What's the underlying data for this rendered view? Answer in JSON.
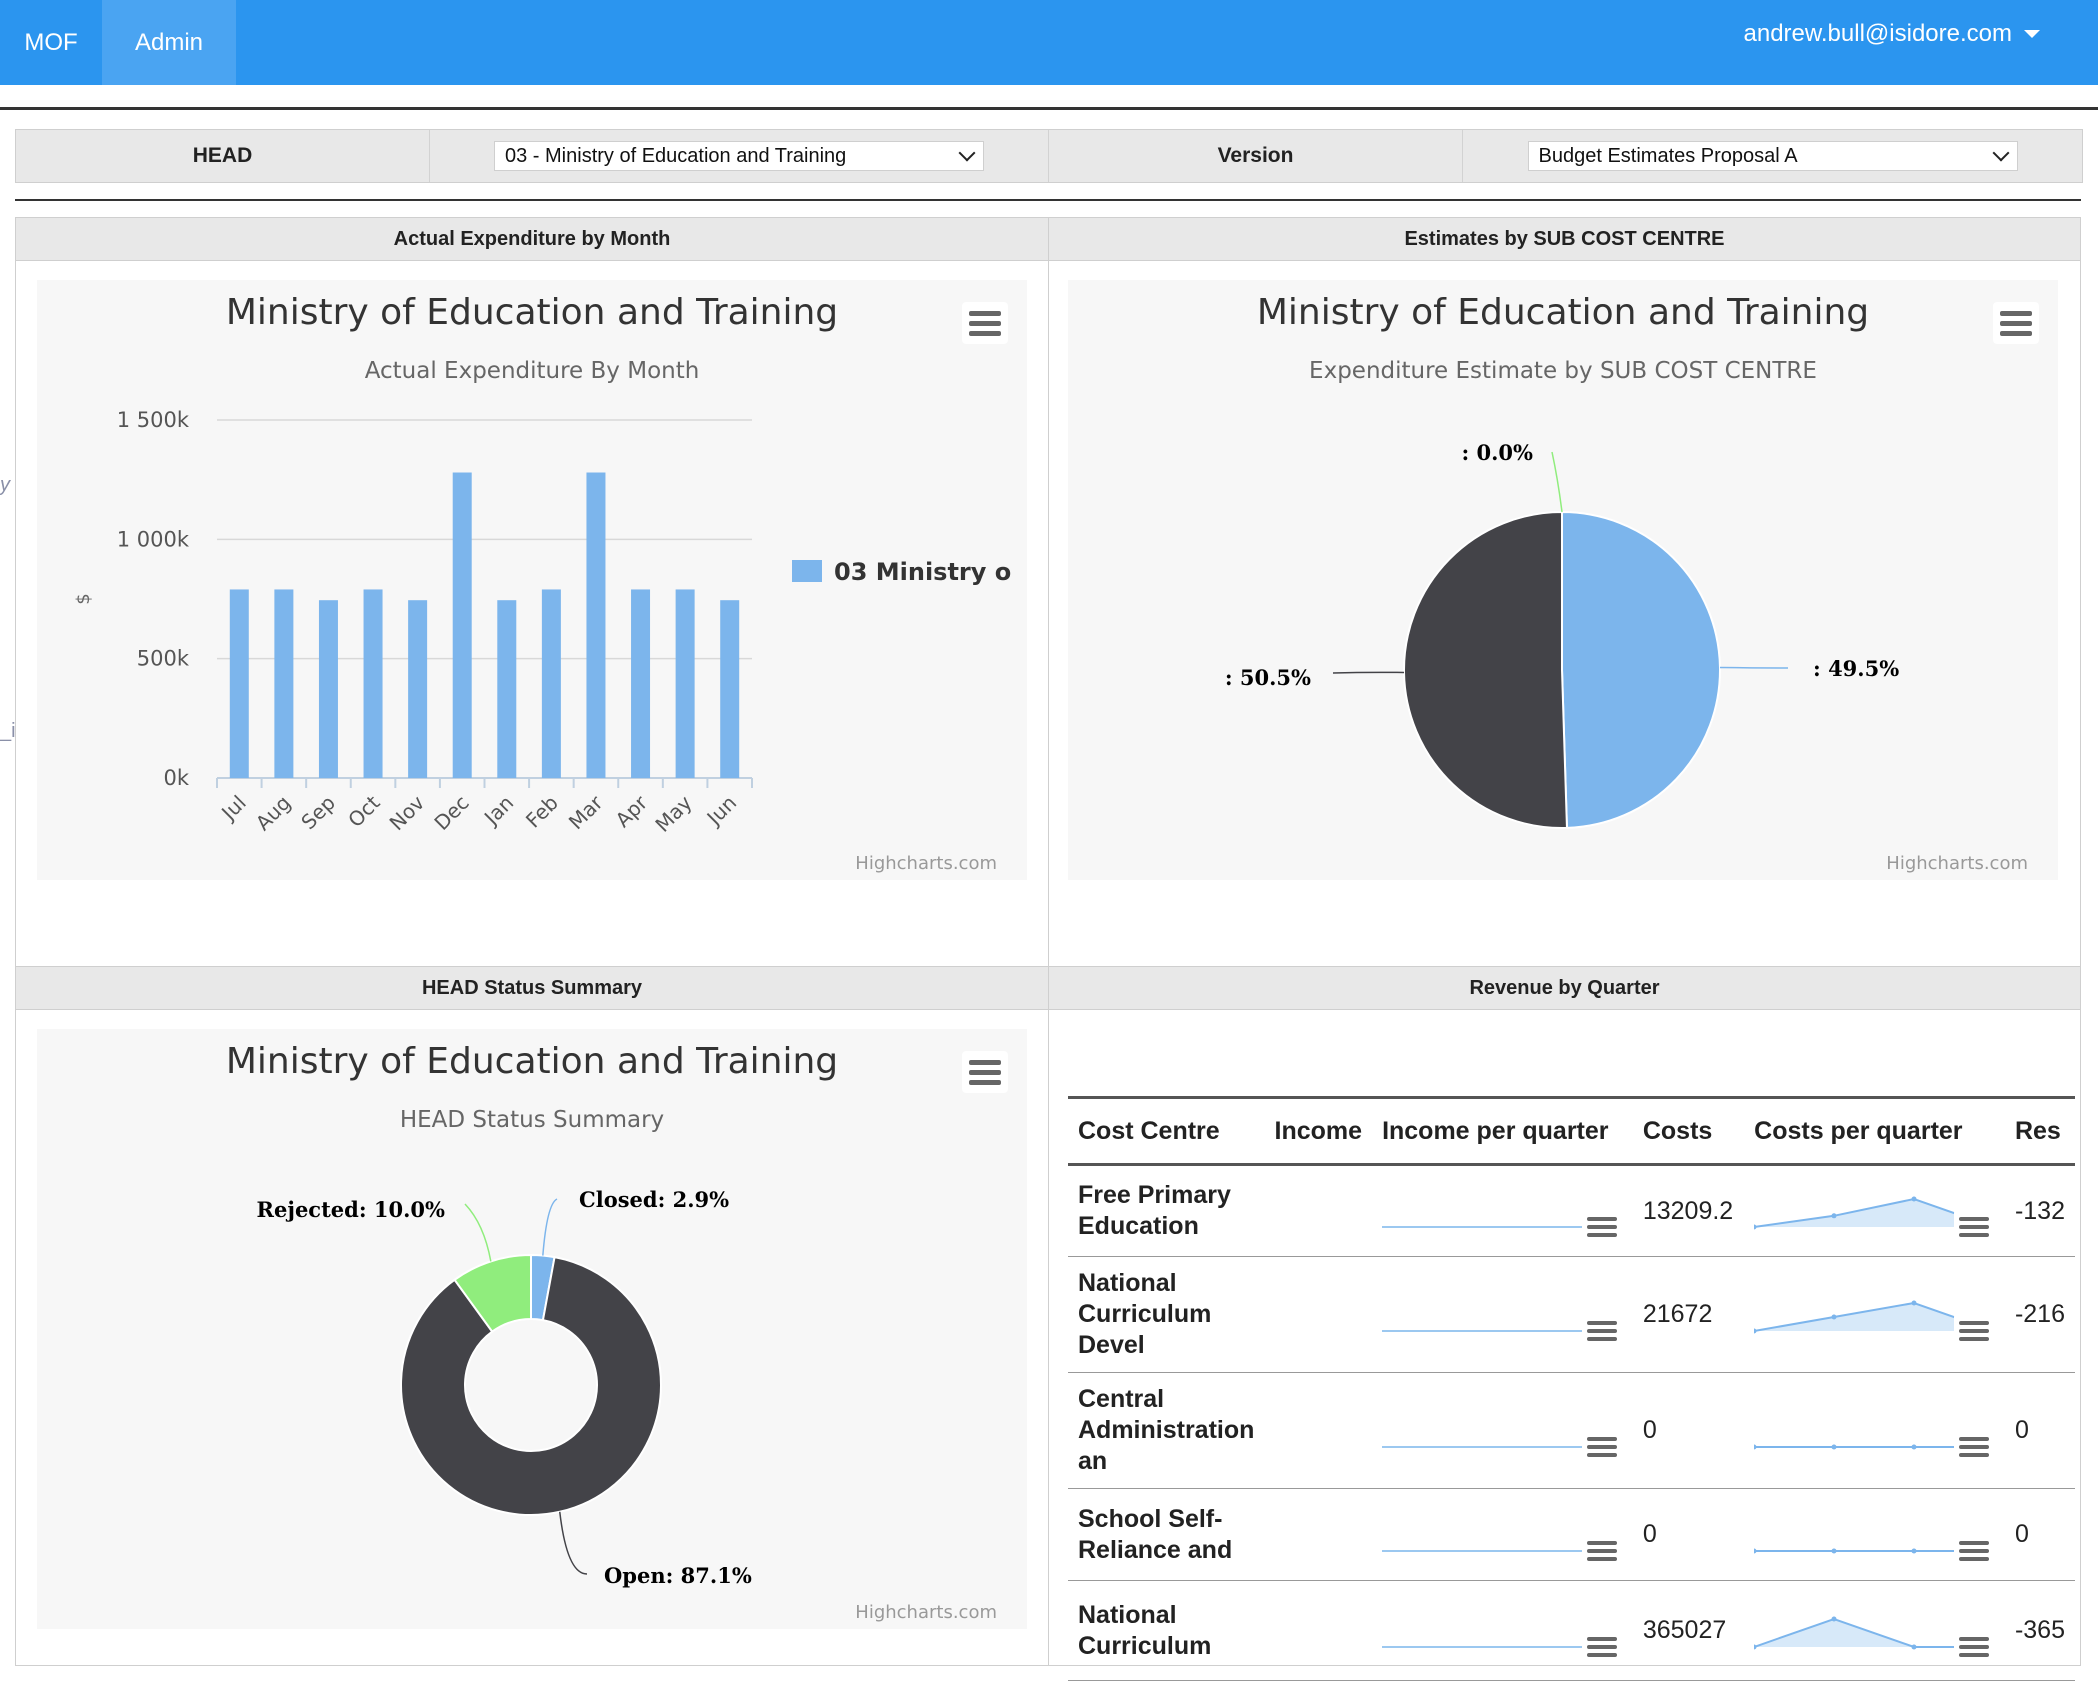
{
  "nav": {
    "brand": "MOF",
    "admin": "Admin",
    "user": "andrew.bull@isidore.com"
  },
  "filters": {
    "head_label": "HEAD",
    "head_value": "03 - Ministry of Education and Training",
    "version_label": "Version",
    "version_value": "Budget Estimates Proposal A"
  },
  "panels": {
    "expenditure_header": "Actual Expenditure by Month",
    "estimates_header": "Estimates by SUB COST CENTRE",
    "status_header": "HEAD Status Summary",
    "revenue_header": "Revenue by Quarter"
  },
  "side_clips": {
    "clip1": "y",
    "clip2": "_ine Item"
  },
  "chart_data": [
    {
      "type": "bar",
      "title": "Ministry of Education and Training",
      "subtitle": "Actual Expenditure By Month",
      "ylabel": "$",
      "ylim": [
        0,
        1500000
      ],
      "yticks": [
        "0k",
        "500k",
        "1 000k",
        "1 500k"
      ],
      "categories": [
        "Jul",
        "Aug",
        "Sep",
        "Oct",
        "Nov",
        "Dec",
        "Jan",
        "Feb",
        "Mar",
        "Apr",
        "May",
        "Jun"
      ],
      "series": [
        {
          "name": "03 Ministry o",
          "color": "#7cb5ec",
          "values": [
            790000,
            790000,
            745000,
            790000,
            745000,
            1280000,
            745000,
            790000,
            1280000,
            790000,
            790000,
            745000
          ]
        }
      ],
      "credit": "Highcharts.com",
      "legend": "right"
    },
    {
      "type": "pie",
      "title": "Ministry of Education and Training",
      "subtitle": "Expenditure Estimate by SUB COST CENTRE",
      "slices": [
        {
          "label": ": 49.5%",
          "value": 49.5,
          "color": "#7cb5ec"
        },
        {
          "label": ": 50.5%",
          "value": 50.5,
          "color": "#434348"
        },
        {
          "label": ": 0.0%",
          "value": 0.0,
          "color": "#90ed7d"
        }
      ],
      "credit": "Highcharts.com"
    },
    {
      "type": "pie",
      "title": "Ministry of Education and Training",
      "subtitle": "HEAD Status Summary",
      "slices": [
        {
          "label": "Closed: 2.9%",
          "value": 2.9,
          "color": "#7cb5ec"
        },
        {
          "label": "Open: 87.1%",
          "value": 87.1,
          "color": "#434348"
        },
        {
          "label": "Rejected: 10.0%",
          "value": 10.0,
          "color": "#90ed7d"
        }
      ],
      "credit": "Highcharts.com"
    }
  ],
  "revenue_table": {
    "columns": [
      "Cost Centre",
      "Income",
      "Income per quarter",
      "Costs",
      "Costs per quarter",
      "Res"
    ],
    "rows": [
      {
        "cost_centre": "Free Primary Education",
        "income": "",
        "costs": "13209.2",
        "result": "-132",
        "costs_quarters": [
          0,
          2000,
          5000,
          0
        ]
      },
      {
        "cost_centre": "National Curriculum Devel",
        "income": "",
        "costs": "21672",
        "result": "-216",
        "costs_quarters": [
          0,
          4000,
          8000,
          0
        ]
      },
      {
        "cost_centre": "Central Administration an",
        "income": "",
        "costs": "0",
        "result": "0",
        "costs_quarters": [
          0,
          0,
          0,
          0
        ]
      },
      {
        "cost_centre": "School Self-Reliance and",
        "income": "",
        "costs": "0",
        "result": "0",
        "costs_quarters": [
          0,
          0,
          0,
          0
        ]
      },
      {
        "cost_centre": "National Curriculum",
        "income": "",
        "costs": "365027",
        "result": "-365",
        "costs_quarters": [
          0,
          80000,
          0,
          0
        ]
      }
    ]
  }
}
